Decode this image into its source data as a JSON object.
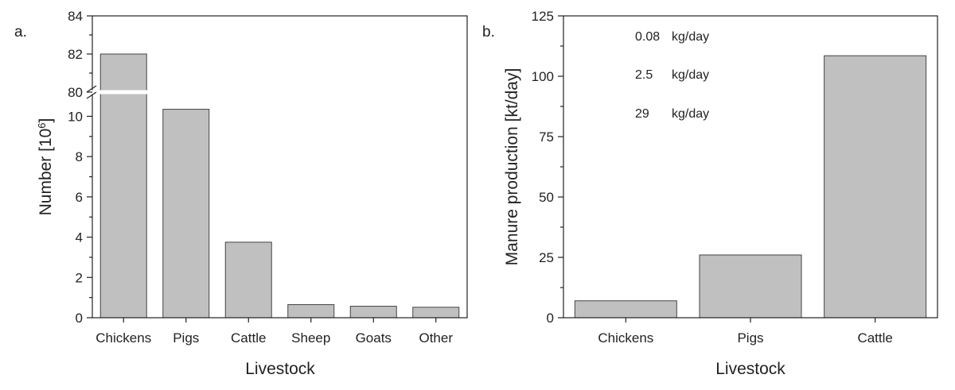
{
  "chart_data": [
    {
      "panel_label": "a.",
      "type": "bar",
      "categories": [
        "Chickens",
        "Pigs",
        "Cattle",
        "Sheep",
        "Goats",
        "Other"
      ],
      "values": [
        82.0,
        10.35,
        3.75,
        0.65,
        0.57,
        0.52
      ],
      "xlabel": "Livestock",
      "ylabel": "Number [10",
      "ylabel_sup": "6",
      "ylabel_close": "]",
      "axis_break": true,
      "lower_ylim": [
        0,
        11.2
      ],
      "upper_ylim": [
        80,
        84
      ],
      "lower_ticks": [
        "0",
        "2",
        "4",
        "6",
        "8",
        "10"
      ],
      "upper_ticks": [
        "80",
        "82",
        "84"
      ],
      "grid": false
    },
    {
      "panel_label": "b.",
      "type": "bar",
      "categories": [
        "Chickens",
        "Pigs",
        "Cattle"
      ],
      "values": [
        7,
        26,
        108.5
      ],
      "xlabel": "Livestock",
      "ylabel": "Manure production [kt/day]",
      "ylim": [
        0,
        125
      ],
      "yticks": [
        "0",
        "25",
        "50",
        "75",
        "100",
        "125"
      ],
      "annotations": [
        {
          "value": "0.08",
          "unit": "kg/day"
        },
        {
          "value": "2.5",
          "unit": "kg/day"
        },
        {
          "value": "29",
          "unit": "kg/day"
        }
      ],
      "grid": false
    }
  ]
}
